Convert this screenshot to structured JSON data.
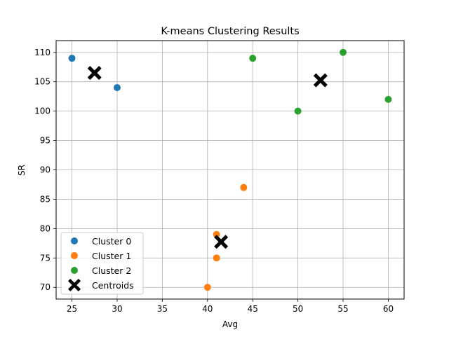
{
  "chart_data": {
    "type": "scatter",
    "title": "K-means Clustering Results",
    "xlabel": "Avg",
    "ylabel": "SR",
    "xlim": [
      23.25,
      61.75
    ],
    "ylim": [
      68.0,
      112.0
    ],
    "xticks": [
      25,
      30,
      35,
      40,
      45,
      50,
      55,
      60
    ],
    "yticks": [
      70,
      75,
      80,
      85,
      90,
      95,
      100,
      105,
      110
    ],
    "grid": true,
    "legend_position": "lower-left",
    "series": [
      {
        "name": "Cluster 0",
        "color": "#1f77b4",
        "marker": "circle",
        "points": [
          [
            25,
            109
          ],
          [
            30,
            104
          ]
        ]
      },
      {
        "name": "Cluster 1",
        "color": "#ff7f0e",
        "marker": "circle",
        "points": [
          [
            41,
            79
          ],
          [
            44,
            87
          ],
          [
            41,
            75
          ],
          [
            40,
            70
          ]
        ]
      },
      {
        "name": "Cluster 2",
        "color": "#2ca02c",
        "marker": "circle",
        "points": [
          [
            45,
            109
          ],
          [
            55,
            110
          ],
          [
            50,
            100
          ],
          [
            60,
            102
          ]
        ]
      },
      {
        "name": "Centroids",
        "color": "#000000",
        "marker": "x",
        "points": [
          [
            27.5,
            106.5
          ],
          [
            41.5,
            77.75
          ],
          [
            52.5,
            105.25
          ]
        ]
      }
    ]
  }
}
